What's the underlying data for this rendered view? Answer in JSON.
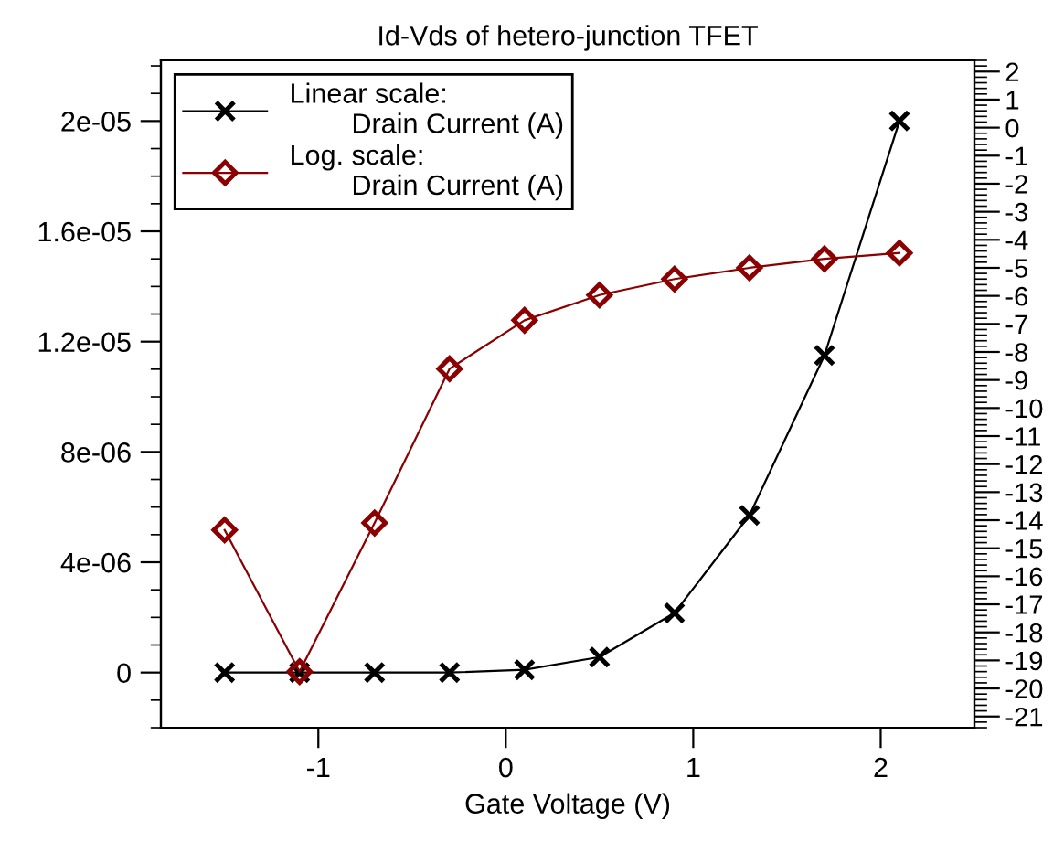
{
  "chart_data": {
    "type": "line",
    "title": "Id-Vds of hetero-junction TFET",
    "xlabel": "Gate Voltage (V)",
    "x": [
      -1.5,
      -1.1,
      -0.7,
      -0.3,
      0.1,
      0.5,
      0.9,
      1.3,
      1.7,
      2.1
    ],
    "series": [
      {
        "name": "Linear scale:\n        Drain Current (A)",
        "color": "#000000",
        "marker": "cross",
        "values": [
          0,
          0,
          0,
          0,
          1e-07,
          5.6e-07,
          2.16e-06,
          5.7e-06,
          1.15e-05,
          2e-05
        ]
      },
      {
        "name": "Log. scale:\n        Drain Current (A)",
        "color": "#8b0000",
        "marker": "diamond",
        "axis": "y2",
        "values": [
          -14.35,
          -19.4,
          -14.1,
          -8.6,
          -6.87,
          -5.97,
          -5.4,
          -5.0,
          -4.68,
          -4.47
        ]
      }
    ],
    "xlim": [
      -1.84,
      2.5
    ],
    "xticks": [
      -1,
      0,
      1,
      2
    ],
    "ylim": [
      -2e-06,
      2.22e-05
    ],
    "yticks": [
      {
        "value": 0,
        "label": "0"
      },
      {
        "value": 4e-06,
        "label": "4e-06"
      },
      {
        "value": 8e-06,
        "label": "8e-06"
      },
      {
        "value": 1.2e-05,
        "label": "1.2e-05"
      },
      {
        "value": 1.6e-05,
        "label": "1.6e-05"
      },
      {
        "value": 2e-05,
        "label": "2e-05"
      }
    ],
    "y2lim": [
      -21.4,
      2.4
    ],
    "y2ticks": [
      -21,
      -20,
      -19,
      -18,
      -17,
      -16,
      -15,
      -14,
      -13,
      -12,
      -11,
      -10,
      -9,
      -8,
      -7,
      -6,
      -5,
      -4,
      -3,
      -2,
      -1,
      0,
      1,
      2
    ],
    "legend": "top left",
    "grid": false,
    "line_style": "solid"
  }
}
